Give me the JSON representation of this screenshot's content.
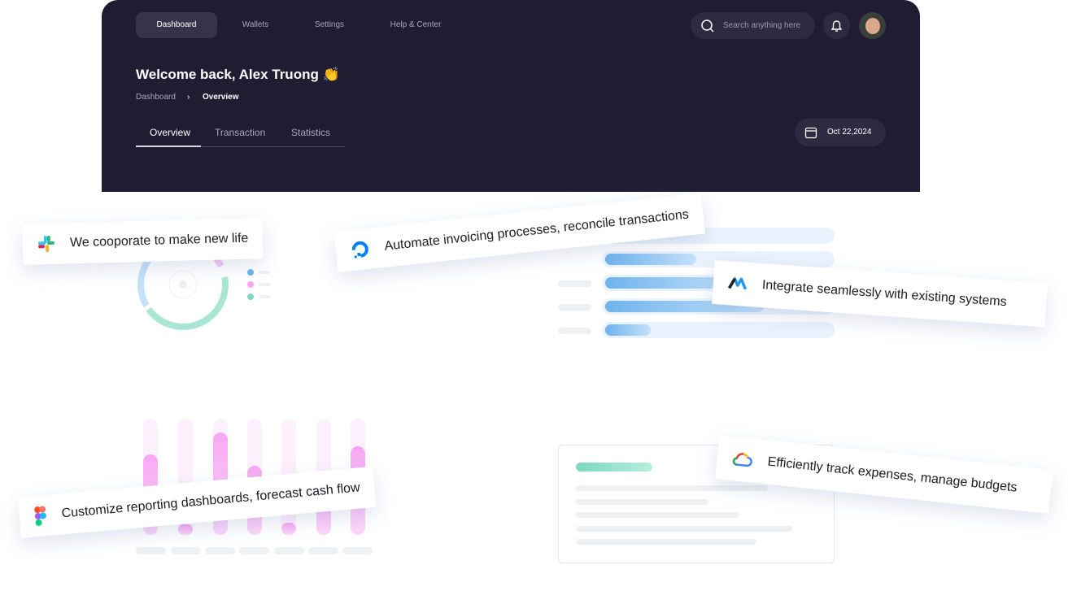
{
  "nav": {
    "items": [
      {
        "label": "Dashboard",
        "active": true
      },
      {
        "label": "Wallets"
      },
      {
        "label": "Settings"
      },
      {
        "label": "Help & Center"
      }
    ],
    "search_placeholder": "Search anything here"
  },
  "header": {
    "title": "Welcome back, Alex Truong 👏",
    "breadcrumb": [
      "Dashboard",
      "Overview"
    ],
    "tabs": [
      {
        "label": "Overview",
        "active": true
      },
      {
        "label": "Transaction"
      },
      {
        "label": "Statistics"
      }
    ],
    "date": "Oct 22,2024"
  },
  "features": [
    {
      "text": "We cooporate to make new life",
      "icon": "slack-icon"
    },
    {
      "text": "Automate invoicing processes, reconcile transactions",
      "icon": "digitalocean-icon"
    },
    {
      "text": "Integrate seamlessly with existing systems",
      "icon": "m-logo-icon"
    },
    {
      "text": "Customize reporting dashboards, forecast cash flow",
      "icon": "figma-icon"
    },
    {
      "text": "Efficiently track expenses, manage budgets",
      "icon": "google-cloud-icon"
    }
  ],
  "colors": {
    "panel": "#201d33",
    "blue": "#6fb3ec",
    "pink": "#f7a7f3",
    "green": "#7dd8bd"
  },
  "horizontal_bar_fill": [
    0.4,
    0.6,
    0.68,
    0.2
  ],
  "vertical_bar_fill": [
    0.69,
    0.09,
    0.88,
    0.59,
    0.1,
    0.45,
    0.76
  ]
}
